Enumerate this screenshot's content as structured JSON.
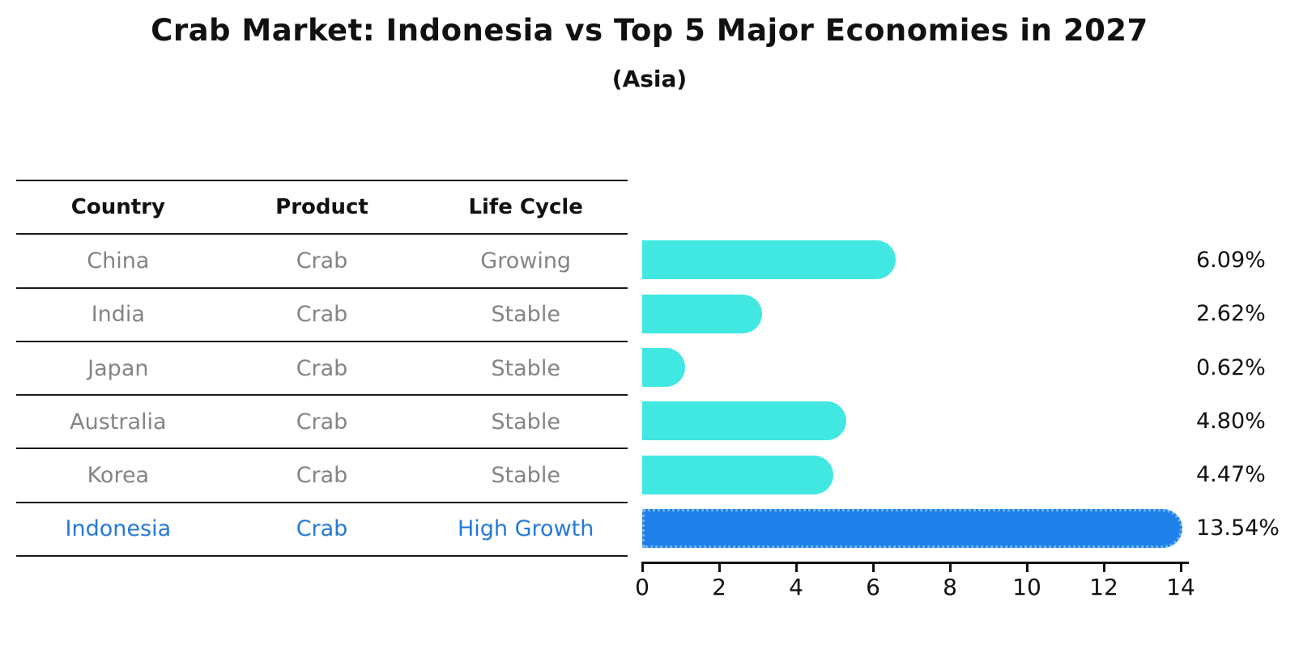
{
  "title": "Crab Market: Indonesia vs Top 5 Major Economies in 2027",
  "subtitle": "(Asia)",
  "table": {
    "headers": [
      "Country",
      "Product",
      "Life Cycle"
    ],
    "rows": [
      {
        "country": "China",
        "product": "Crab",
        "life_cycle": "Growing",
        "highlight": false
      },
      {
        "country": "India",
        "product": "Crab",
        "life_cycle": "Stable",
        "highlight": false
      },
      {
        "country": "Japan",
        "product": "Crab",
        "life_cycle": "Stable",
        "highlight": false
      },
      {
        "country": "Australia",
        "product": "Crab",
        "life_cycle": "Stable",
        "highlight": false
      },
      {
        "country": "Korea",
        "product": "Crab",
        "life_cycle": "Stable",
        "highlight": false
      },
      {
        "country": "Indonesia",
        "product": "Crab",
        "life_cycle": "High Growth",
        "highlight": true
      }
    ]
  },
  "chart_data": {
    "type": "bar",
    "orientation": "horizontal",
    "title": "Crab Market: Indonesia vs Top 5 Major Economies in 2027",
    "subtitle": "(Asia)",
    "categories": [
      "China",
      "India",
      "Japan",
      "Australia",
      "Korea",
      "Indonesia"
    ],
    "values": [
      6.09,
      2.62,
      0.62,
      4.8,
      4.47,
      13.54
    ],
    "value_labels": [
      "6.09%",
      "2.62%",
      "0.62%",
      "4.80%",
      "4.47%",
      "13.54%"
    ],
    "x_ticks": [
      0,
      2,
      4,
      6,
      8,
      10,
      12,
      14
    ],
    "xlim": [
      0,
      14
    ],
    "grid": false,
    "legend": false,
    "highlight_index": 5,
    "bar_color": "#40e8e1",
    "highlight_color": "#1e80e8",
    "highlight_text_color": "#2579d9",
    "text_color": "#848484"
  }
}
